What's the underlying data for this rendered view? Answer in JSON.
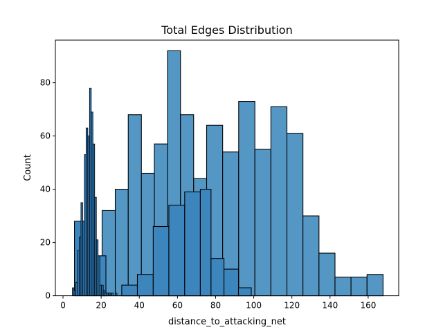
{
  "chart_data": {
    "type": "histogram",
    "title": "Total Edges Distribution",
    "xlabel": "distance_to_attacking_net",
    "ylabel": "Count",
    "xlim": [
      -4,
      176
    ],
    "ylim": [
      0,
      96
    ],
    "xticks": [
      0,
      20,
      40,
      60,
      80,
      100,
      120,
      140,
      160
    ],
    "yticks": [
      0,
      20,
      40,
      60,
      80
    ],
    "grid": false,
    "colors": {
      "wide": "#5497c5",
      "medium": "#3d86bd",
      "narrow": "#2c74b0",
      "edge": "#000000"
    },
    "series": [
      {
        "bars": [
          {
            "x0": 20.5,
            "x1": 27.4,
            "y": 32
          },
          {
            "x0": 27.4,
            "x1": 34.2,
            "y": 40
          },
          {
            "x0": 34.2,
            "x1": 41.1,
            "y": 68
          },
          {
            "x0": 41.1,
            "x1": 47.9,
            "y": 46
          },
          {
            "x0": 47.9,
            "x1": 54.8,
            "y": 57
          },
          {
            "x0": 54.8,
            "x1": 61.6,
            "y": 92
          },
          {
            "x0": 61.6,
            "x1": 68.5,
            "y": 68
          },
          {
            "x0": 68.5,
            "x1": 75.3,
            "y": 44
          },
          {
            "x0": 75.3,
            "x1": 83.7,
            "y": 64
          },
          {
            "x0": 83.7,
            "x1": 92.1,
            "y": 54
          },
          {
            "x0": 92.1,
            "x1": 100.6,
            "y": 73
          },
          {
            "x0": 100.6,
            "x1": 109.0,
            "y": 55
          },
          {
            "x0": 109.0,
            "x1": 117.4,
            "y": 71
          },
          {
            "x0": 117.4,
            "x1": 125.8,
            "y": 61
          },
          {
            "x0": 125.8,
            "x1": 134.2,
            "y": 30
          },
          {
            "x0": 134.2,
            "x1": 142.6,
            "y": 16
          },
          {
            "x0": 142.6,
            "x1": 151.0,
            "y": 7
          },
          {
            "x0": 151.0,
            "x1": 159.4,
            "y": 7
          },
          {
            "x0": 159.4,
            "x1": 167.8,
            "y": 8
          }
        ]
      },
      {
        "bars": [
          {
            "x0": 6.0,
            "x1": 14.3,
            "y": 28
          },
          {
            "x0": 14.3,
            "x1": 22.5,
            "y": 15
          },
          {
            "x0": 22.5,
            "x1": 30.8,
            "y": 0
          },
          {
            "x0": 30.8,
            "x1": 39.0,
            "y": 4
          },
          {
            "x0": 39.0,
            "x1": 47.3,
            "y": 8
          },
          {
            "x0": 47.3,
            "x1": 55.5,
            "y": 26
          },
          {
            "x0": 55.5,
            "x1": 63.8,
            "y": 34
          },
          {
            "x0": 63.8,
            "x1": 72.0,
            "y": 39
          },
          {
            "x0": 72.0,
            "x1": 77.6,
            "y": 40
          },
          {
            "x0": 77.6,
            "x1": 84.4,
            "y": 14
          },
          {
            "x0": 84.4,
            "x1": 92.0,
            "y": 10
          },
          {
            "x0": 92.0,
            "x1": 98.7,
            "y": 3
          }
        ]
      },
      {
        "bars": [
          {
            "x0": 4.9,
            "x1": 5.8,
            "y": 3
          },
          {
            "x0": 5.8,
            "x1": 6.7,
            "y": 2
          },
          {
            "x0": 6.7,
            "x1": 7.6,
            "y": 5
          },
          {
            "x0": 7.6,
            "x1": 8.5,
            "y": 17
          },
          {
            "x0": 8.5,
            "x1": 9.4,
            "y": 22
          },
          {
            "x0": 9.4,
            "x1": 10.3,
            "y": 35
          },
          {
            "x0": 10.3,
            "x1": 11.2,
            "y": 28
          },
          {
            "x0": 11.2,
            "x1": 12.1,
            "y": 53
          },
          {
            "x0": 12.1,
            "x1": 13.0,
            "y": 63
          },
          {
            "x0": 13.0,
            "x1": 13.9,
            "y": 60
          },
          {
            "x0": 13.9,
            "x1": 14.8,
            "y": 78
          },
          {
            "x0": 14.8,
            "x1": 15.7,
            "y": 69
          },
          {
            "x0": 15.7,
            "x1": 16.6,
            "y": 57
          },
          {
            "x0": 16.6,
            "x1": 17.5,
            "y": 37
          },
          {
            "x0": 17.5,
            "x1": 18.4,
            "y": 21
          },
          {
            "x0": 18.4,
            "x1": 19.3,
            "y": 15
          },
          {
            "x0": 19.3,
            "x1": 20.2,
            "y": 4
          },
          {
            "x0": 20.2,
            "x1": 21.1,
            "y": 4
          },
          {
            "x0": 21.1,
            "x1": 22.0,
            "y": 2
          },
          {
            "x0": 22.0,
            "x1": 22.9,
            "y": 1
          },
          {
            "x0": 22.9,
            "x1": 23.8,
            "y": 1
          },
          {
            "x0": 23.8,
            "x1": 24.7,
            "y": 1
          },
          {
            "x0": 24.7,
            "x1": 25.6,
            "y": 1
          },
          {
            "x0": 25.6,
            "x1": 26.5,
            "y": 1
          },
          {
            "x0": 26.5,
            "x1": 27.4,
            "y": 0
          },
          {
            "x0": 27.4,
            "x1": 28.3,
            "y": 1
          }
        ]
      }
    ]
  }
}
